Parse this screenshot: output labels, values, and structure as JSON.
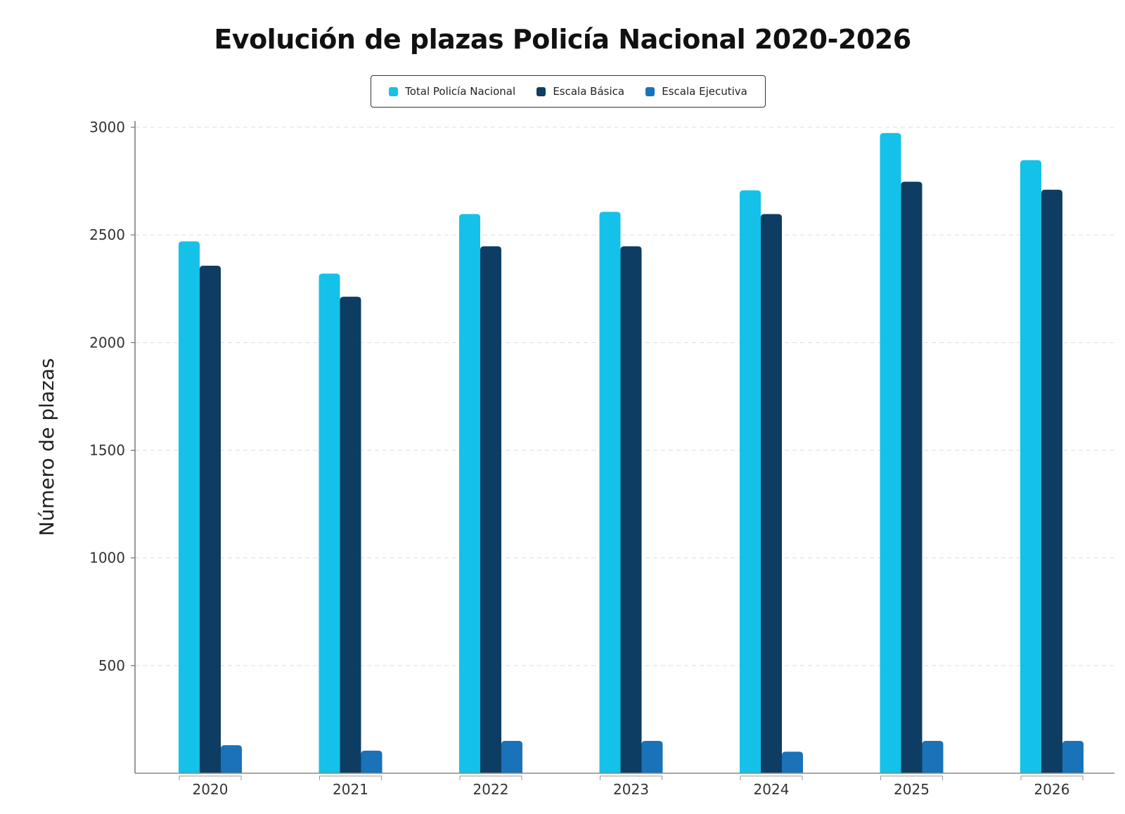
{
  "chart_data": {
    "type": "bar",
    "title": "Evolución de plazas Policía Nacional 2020-2026",
    "xlabel": "",
    "ylabel": "Número de plazas",
    "ylim": [
      0,
      3000
    ],
    "yticks": [
      500,
      1000,
      1500,
      2000,
      2500,
      3000
    ],
    "grid": true,
    "legend_position": "top-center",
    "categories": [
      "2020",
      "2021",
      "2022",
      "2023",
      "2024",
      "2025",
      "2026"
    ],
    "series": [
      {
        "name": "Total Policía Nacional",
        "color": "#14c1e8",
        "values": [
          2470,
          2320,
          2597,
          2607,
          2707,
          2973,
          2847
        ]
      },
      {
        "name": "Escala Básica",
        "color": "#0e3d63",
        "values": [
          2357,
          2213,
          2447,
          2447,
          2597,
          2747,
          2710
        ]
      },
      {
        "name": "Escala Ejecutiva",
        "color": "#1a72b8",
        "values": [
          130,
          105,
          150,
          150,
          100,
          150,
          150
        ]
      }
    ]
  }
}
